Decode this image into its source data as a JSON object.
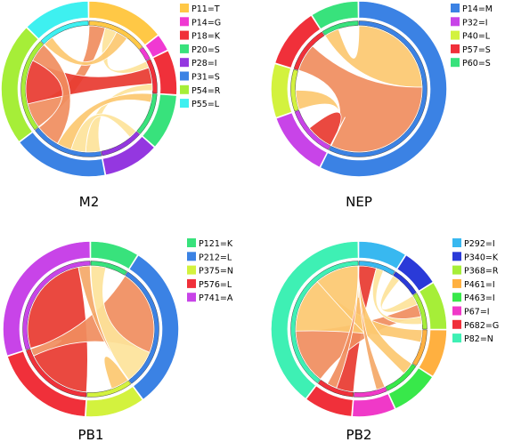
{
  "panels": [
    {
      "label": "M2",
      "segments": [
        {
          "name": "P11=T",
          "color": "#ffc846",
          "value": 14
        },
        {
          "name": "P14=G",
          "color": "#f039d2",
          "value": 3
        },
        {
          "name": "P18=K",
          "color": "#f0303a",
          "value": 8
        },
        {
          "name": "P20=S",
          "color": "#38e27c",
          "value": 10
        },
        {
          "name": "P28=I",
          "color": "#9437e0",
          "value": 10
        },
        {
          "name": "P31=S",
          "color": "#3b82e4",
          "value": 17
        },
        {
          "name": "P54=R",
          "color": "#a6ee38",
          "value": 22
        },
        {
          "name": "P55=L",
          "color": "#3ef0f0",
          "value": 12
        }
      ],
      "chords": [
        {
          "from": 0,
          "to": 6,
          "width": 4,
          "color": "#f08d5e"
        },
        {
          "from": 0,
          "to": 2,
          "width": 3,
          "color": "#fde39a"
        },
        {
          "from": 2,
          "to": 6,
          "width": 7,
          "color": "#e83a30"
        },
        {
          "from": 5,
          "to": 2,
          "width": 3,
          "color": "#fde39a"
        },
        {
          "from": 5,
          "to": 4,
          "width": 3,
          "color": "#fde39a"
        },
        {
          "from": 5,
          "to": 3,
          "width": 3,
          "color": "#fcc870"
        },
        {
          "from": 6,
          "to": 5,
          "width": 6,
          "color": "#f08d5e"
        },
        {
          "from": 7,
          "to": 0,
          "width": 3,
          "color": "#fcc870"
        }
      ]
    },
    {
      "label": "NEP",
      "segments": [
        {
          "name": "P14=M",
          "color": "#3b82e4",
          "value": 52
        },
        {
          "name": "P32=I",
          "color": "#c844e8",
          "value": 11
        },
        {
          "name": "P40=L",
          "color": "#d3f23e",
          "value": 9
        },
        {
          "name": "P57=S",
          "color": "#f0303a",
          "value": 10
        },
        {
          "name": "P60=S",
          "color": "#38e27c",
          "value": 8
        }
      ],
      "chords": [
        {
          "from": 0,
          "to": 4,
          "width": 6,
          "color": "#fcc870"
        },
        {
          "from": 0,
          "to": 3,
          "width": 9,
          "color": "#f08d5e"
        },
        {
          "from": 0,
          "to": 2,
          "width": 7,
          "color": "#fcc870"
        },
        {
          "from": 0,
          "to": 1,
          "width": 8,
          "color": "#e83a30"
        },
        {
          "from": 0,
          "to": 0,
          "width": 4,
          "color": "#fcc870"
        }
      ]
    },
    {
      "label": "PB1",
      "segments": [
        {
          "name": "P121=K",
          "color": "#38e27c",
          "value": 9
        },
        {
          "name": "P212=L",
          "color": "#3b82e4",
          "value": 31
        },
        {
          "name": "P375=N",
          "color": "#d3f23e",
          "value": 11
        },
        {
          "name": "P576=L",
          "color": "#f0303a",
          "value": 19
        },
        {
          "name": "P741=A",
          "color": "#c844e8",
          "value": 30
        }
      ],
      "chords": [
        {
          "from": 4,
          "to": 3,
          "width": 14,
          "color": "#e83a30"
        },
        {
          "from": 1,
          "to": 3,
          "width": 10,
          "color": "#f08d5e"
        },
        {
          "from": 0,
          "to": 1,
          "width": 6,
          "color": "#fde39a"
        },
        {
          "from": 2,
          "to": 1,
          "width": 6,
          "color": "#fcc870"
        },
        {
          "from": 4,
          "to": 1,
          "width": 8,
          "color": "#f4a868"
        }
      ]
    },
    {
      "label": "PB2",
      "segments": [
        {
          "name": "P292=I",
          "color": "#38b8f0",
          "value": 9
        },
        {
          "name": "P340=K",
          "color": "#2a3ad8",
          "value": 7
        },
        {
          "name": "P368=R",
          "color": "#a6ee38",
          "value": 9
        },
        {
          "name": "P461=I",
          "color": "#ffb040",
          "value": 9
        },
        {
          "name": "P463=I",
          "color": "#38e84a",
          "value": 9
        },
        {
          "name": "P67=I",
          "color": "#f039c8",
          "value": 8
        },
        {
          "name": "P682=G",
          "color": "#f0303a",
          "value": 9
        },
        {
          "name": "P82=N",
          "color": "#3ef0b4",
          "value": 40
        }
      ],
      "chords": [
        {
          "from": 0,
          "to": 6,
          "width": 7,
          "color": "#e83a30"
        },
        {
          "from": 1,
          "to": 2,
          "width": 4,
          "color": "#fde39a"
        },
        {
          "from": 2,
          "to": 7,
          "width": 5,
          "color": "#f08d5e"
        },
        {
          "from": 3,
          "to": 7,
          "width": 5,
          "color": "#fcc870"
        },
        {
          "from": 4,
          "to": 7,
          "width": 5,
          "color": "#fcc870"
        },
        {
          "from": 5,
          "to": 7,
          "width": 4,
          "color": "#f4a868"
        },
        {
          "from": 6,
          "to": 7,
          "width": 4,
          "color": "#f08d5e"
        },
        {
          "from": 7,
          "to": 7,
          "width": 6,
          "color": "#fcc870"
        },
        {
          "from": 0,
          "to": 2,
          "width": 3,
          "color": "#fde39a"
        }
      ]
    }
  ]
}
